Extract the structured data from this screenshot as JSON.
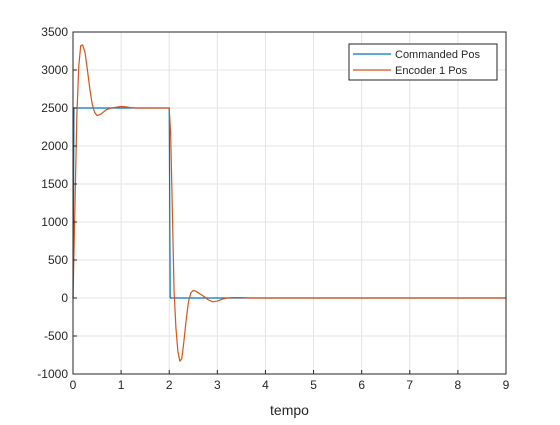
{
  "chart_data": {
    "type": "line",
    "xlabel": "tempo",
    "xlim": [
      0,
      9
    ],
    "ylim": [
      -1000,
      3500
    ],
    "xticks": [
      0,
      1,
      2,
      3,
      4,
      5,
      6,
      7,
      8,
      9
    ],
    "yticks": [
      -1000,
      -500,
      0,
      500,
      1000,
      1500,
      2000,
      2500,
      3000,
      3500
    ],
    "grid": true,
    "legend_position": "top-right",
    "series": [
      {
        "name": "Commanded Pos",
        "color": "#0072BD",
        "x": [
          0,
          0.02,
          2.0,
          2.02,
          9
        ],
        "y": [
          0,
          2500,
          2500,
          0,
          0
        ]
      },
      {
        "name": "Encoder 1 Pos",
        "color": "#D95319",
        "x": [
          0,
          0.04,
          0.08,
          0.12,
          0.16,
          0.2,
          0.25,
          0.3,
          0.35,
          0.4,
          0.45,
          0.5,
          0.55,
          0.6,
          0.7,
          0.8,
          0.9,
          1.0,
          1.1,
          1.2,
          1.3,
          1.5,
          2.0,
          2.03,
          2.07,
          2.1,
          2.14,
          2.18,
          2.22,
          2.26,
          2.3,
          2.35,
          2.4,
          2.45,
          2.5,
          2.55,
          2.6,
          2.65,
          2.7,
          2.8,
          2.9,
          3.0,
          3.1,
          3.2,
          3.3,
          3.5,
          3.7,
          4.0,
          9.0
        ],
        "y": [
          0,
          1200,
          2400,
          3050,
          3320,
          3330,
          3230,
          3000,
          2750,
          2550,
          2440,
          2400,
          2410,
          2430,
          2480,
          2500,
          2510,
          2520,
          2515,
          2505,
          2500,
          2500,
          2500,
          2150,
          1000,
          100,
          -400,
          -700,
          -830,
          -800,
          -600,
          -300,
          -50,
          70,
          100,
          90,
          70,
          50,
          30,
          -20,
          -50,
          -40,
          -15,
          0,
          5,
          5,
          0,
          0,
          0
        ]
      }
    ]
  }
}
